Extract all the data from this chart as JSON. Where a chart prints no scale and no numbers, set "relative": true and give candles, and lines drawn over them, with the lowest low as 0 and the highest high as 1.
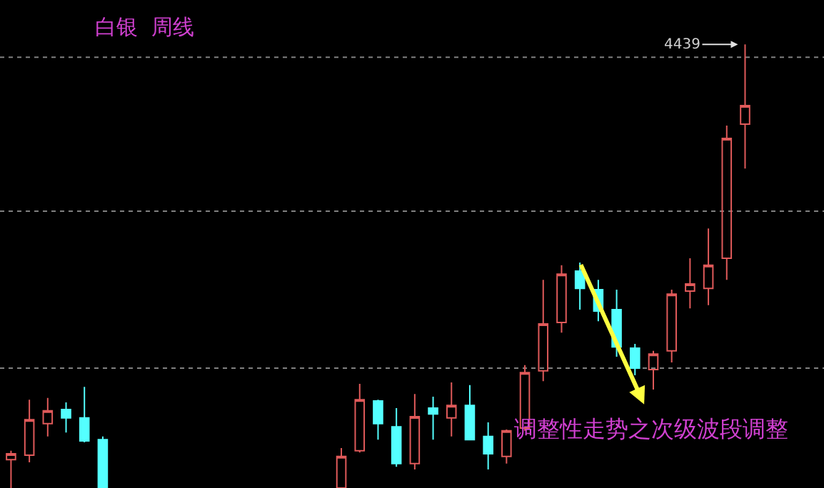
{
  "chart_data": {
    "type": "candlestick",
    "relative": true,
    "title": "白银  周线",
    "categories": [
      null,
      null,
      null,
      null,
      null,
      null,
      null,
      null,
      null,
      null,
      null,
      null,
      null,
      null,
      null,
      null,
      null,
      null,
      null,
      null,
      null,
      null,
      null,
      null,
      null,
      null,
      null,
      null,
      null,
      null,
      null,
      null,
      null,
      null,
      null,
      null,
      null,
      null,
      null,
      null,
      null
    ],
    "ohlc": [
      [
        0.064,
        0.084,
        0,
        0.077
      ],
      [
        0.074,
        0.199,
        0.058,
        0.154
      ],
      [
        0.145,
        0.203,
        0.116,
        0.174
      ],
      [
        0.177,
        0.193,
        0.125,
        0.158
      ],
      [
        0.158,
        0.228,
        0.103,
        0.106
      ],
      [
        0.109,
        0.116,
        0,
        0
      ],
      null,
      null,
      null,
      null,
      null,
      null,
      null,
      null,
      null,
      null,
      null,
      null,
      [
        0,
        0.09,
        0,
        0.071
      ],
      [
        0.084,
        0.235,
        0.08,
        0.199
      ],
      [
        0.196,
        0.199,
        0.109,
        0.145
      ],
      [
        0.138,
        0.18,
        0.048,
        0.055
      ],
      [
        0.055,
        0.212,
        0.042,
        0.161
      ],
      [
        0.18,
        0.206,
        0.109,
        0.167
      ],
      [
        0.158,
        0.238,
        0.116,
        0.186
      ],
      [
        0.186,
        0.232,
        0.109,
        0.109
      ],
      [
        0.116,
        0.148,
        0.042,
        0.077
      ],
      [
        0.071,
        0.132,
        0.055,
        0.129
      ],
      [
        0.135,
        0.277,
        0.129,
        0.26
      ],
      [
        0.264,
        0.469,
        0.241,
        0.37
      ],
      [
        0.373,
        0.502,
        0.35,
        0.482
      ],
      [
        0.489,
        0.508,
        0.402,
        0.45
      ],
      [
        0.447,
        0.469,
        0.376,
        0.399
      ],
      [
        0.402,
        0.447,
        0.296,
        0.318
      ],
      [
        0.315,
        0.325,
        0.254,
        0.27
      ],
      [
        0.267,
        0.309,
        0.222,
        0.302
      ],
      [
        0.309,
        0.447,
        0.283,
        0.437
      ],
      [
        0.444,
        0.518,
        0.405,
        0.46
      ],
      [
        0.45,
        0.585,
        0.412,
        0.502
      ],
      [
        0.518,
        0.817,
        0.469,
        0.788
      ],
      [
        0.82,
        1,
        0.72,
        0.862
      ]
    ],
    "colors": [
      "#e05a5a",
      "#e05a5a",
      "#e05a5a",
      "#54ffff",
      "#54ffff",
      "#54ffff",
      null,
      null,
      null,
      null,
      null,
      null,
      null,
      null,
      null,
      null,
      null,
      null,
      "#e05a5a",
      "#e05a5a",
      "#54ffff",
      "#54ffff",
      "#e05a5a",
      "#54ffff",
      "#e05a5a",
      "#54ffff",
      "#54ffff",
      "#e05a5a",
      "#e05a5a",
      "#e05a5a",
      "#e05a5a",
      "#54ffff",
      "#54ffff",
      "#54ffff",
      "#54ffff",
      "#e05a5a",
      "#e05a5a",
      "#e05a5a",
      "#e05a5a",
      "#e05a5a",
      "#e05a5a"
    ],
    "ref_lines": [
      {
        "axis": "y",
        "value": 0.971,
        "color": "#808080",
        "line_style": "dotted"
      },
      {
        "axis": "y",
        "value": 0.624,
        "color": "#808080",
        "line_style": "dotted"
      },
      {
        "axis": "y",
        "value": 0.27,
        "color": "#808080",
        "line_style": "dotted"
      }
    ],
    "annotations": [
      "4439",
      "调整性走势之次级波段调整"
    ],
    "tick_labels": false,
    "legend": false
  }
}
